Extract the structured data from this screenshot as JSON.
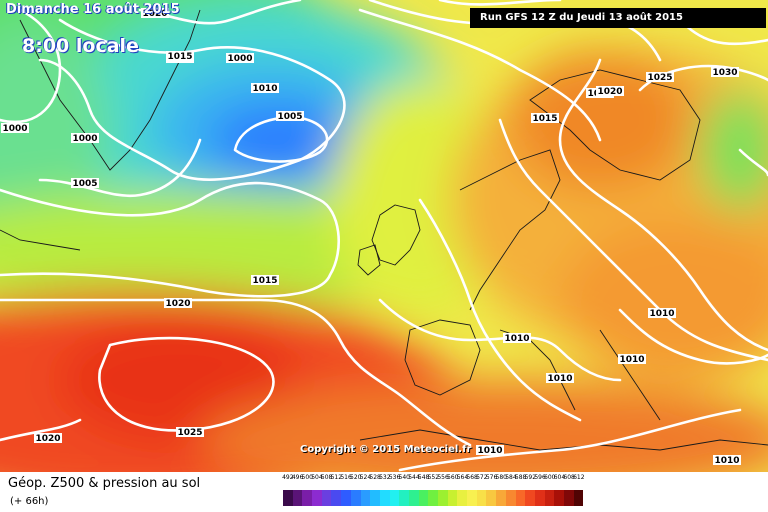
{
  "header": {
    "date": "Dimanche 16 août 2015",
    "time": "8:00 locale",
    "run": "Run GFS 12 Z du Jeudi 13 août 2015"
  },
  "copyright": "Copyright © 2015 Meteociel.fr",
  "footer": {
    "title": "Géop. Z500 & pression au sol",
    "subtitle": "(+ 66h)"
  },
  "isobars": [
    "1020",
    "1015",
    "1010",
    "1005",
    "1000",
    "1000",
    "1005",
    "1000",
    "1015",
    "1020",
    "1025",
    "1030",
    "1015",
    "1020",
    "1015",
    "1020",
    "1025",
    "1020",
    "1010",
    "1010",
    "1010",
    "1010",
    "1010",
    "1010"
  ],
  "legend": {
    "labels": [
      "492",
      "496",
      "500",
      "504",
      "508",
      "512",
      "516",
      "520",
      "524",
      "528",
      "532",
      "536",
      "540",
      "544",
      "548",
      "552",
      "556",
      "560",
      "564",
      "568",
      "572",
      "576",
      "580",
      "584",
      "588",
      "592",
      "596",
      "600",
      "604",
      "608",
      "612"
    ],
    "colors": [
      "#3a0a4a",
      "#5a1477",
      "#7a1ea8",
      "#8c2bd0",
      "#6a3fe0",
      "#4a4af0",
      "#2f5cff",
      "#2a7cff",
      "#2a9cff",
      "#22bcff",
      "#22dcff",
      "#22f0f0",
      "#22f0c0",
      "#2ef090",
      "#4af060",
      "#70f040",
      "#9cf030",
      "#c8f030",
      "#e8f040",
      "#f8f050",
      "#f8e048",
      "#f8c840",
      "#f8a838",
      "#f88830",
      "#f86828",
      "#f04820",
      "#e03018",
      "#c82010",
      "#a81008",
      "#800808",
      "#500404"
    ]
  }
}
